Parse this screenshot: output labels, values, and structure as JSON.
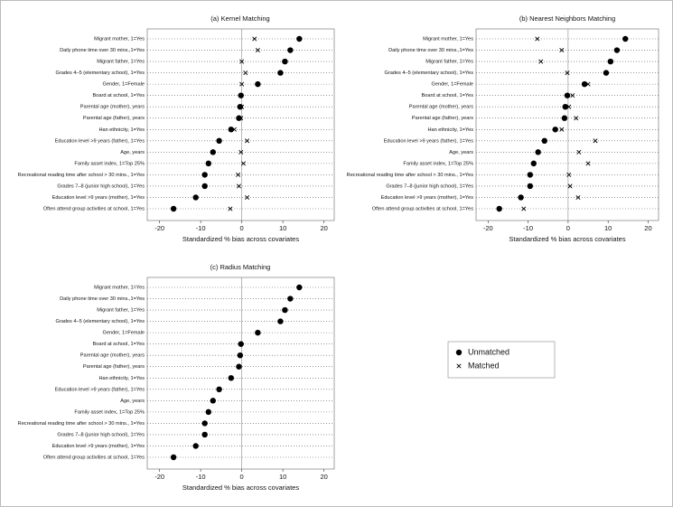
{
  "chart_data": [
    {
      "type": "dot",
      "title": "(a) Kernel Matching",
      "xlabel": "Standardized % bias across covariates",
      "categories": [
        "Migrant mother, 1=Yes",
        "Daily phone time over 30 mins.,1=Yes",
        "Migrant father, 1=Yes",
        "Grades 4–5 (elementary school), 1=Yes",
        "Gender, 1=Female",
        "Board at school, 1=Yes",
        "Parental age (mother), years",
        "Parental age (father), years",
        "Han ethnicity, 1=Yes",
        "Education level >9 years (father), 1=Yes",
        "Age, years",
        "Family asset index, 1=Top 25%",
        "Recreational reading time after school > 30 mins., 1=Yes",
        "Grades 7–8 (junior high school), 1=Yes",
        "Education level >9 years (mother), 1=Yes",
        "Often attend group activities at school, 1=Yes"
      ],
      "series": [
        {
          "name": "Unmatched",
          "marker": "circle",
          "color": "#000000",
          "values": [
            14.0,
            11.8,
            10.5,
            9.4,
            3.9,
            -0.2,
            -0.4,
            -0.7,
            -2.6,
            -5.5,
            -7.0,
            -8.1,
            -9.0,
            -9.0,
            -11.2,
            -16.6
          ]
        },
        {
          "name": "Matched",
          "marker": "x",
          "color": "#000000",
          "values": [
            3.1,
            3.9,
            0.0,
            0.9,
            0.0,
            -0.2,
            0.0,
            -0.2,
            -1.8,
            1.3,
            -0.2,
            0.4,
            -0.9,
            -0.7,
            1.3,
            -2.8
          ]
        }
      ],
      "xlim": [
        -23,
        22.5
      ],
      "xticks": [
        -20,
        -10,
        0,
        10,
        20
      ]
    },
    {
      "type": "dot",
      "title": "(b) Nearest Neighbors Matching",
      "xlabel": "Standardized % bias across covariates",
      "categories": [
        "Migrant mother, 1=Yes",
        "Daily phone time over 30 mins.,1=Yes",
        "Migrant father, 1=Yes",
        "Grades 4–5 (elementary school), 1=Yes",
        "Gender, 1=Female",
        "Board at school, 1=Yes",
        "Parental age (mother), years",
        "Parental age (father), years",
        "Han ethnicity, 1=Yes",
        "Education level >9 years (father), 1=Yes",
        "Age, years",
        "Family asset index, 1=Top 25%",
        "Recreational reading time after school > 30 mins., 1=Yes",
        "Grades 7–8 (junior high school), 1=Yes",
        "Education level >9 years (mother), 1=Yes",
        "Often attend group activities at school, 1=Yes"
      ],
      "series": [
        {
          "name": "Unmatched",
          "marker": "circle",
          "color": "#000000",
          "values": [
            14.3,
            12.2,
            10.6,
            9.5,
            4.1,
            -0.2,
            -0.7,
            -0.9,
            -3.2,
            -5.9,
            -7.5,
            -8.6,
            -9.5,
            -9.5,
            -11.8,
            -17.2
          ]
        },
        {
          "name": "Matched",
          "marker": "x",
          "color": "#000000",
          "values": [
            -7.7,
            -1.6,
            -6.8,
            -0.2,
            5.0,
            1.1,
            0.2,
            2.0,
            -1.6,
            6.8,
            2.7,
            5.0,
            0.2,
            0.5,
            2.5,
            -11.1
          ]
        }
      ],
      "xlim": [
        -23,
        22.6
      ],
      "xticks": [
        -20,
        -10,
        0,
        10,
        20
      ]
    },
    {
      "type": "dot",
      "title": "(c) Radius Matching",
      "xlabel": "Standardized % bias across covariates",
      "categories": [
        "Migrant mother, 1=Yes",
        "Daily phone time over 30 mins.,1=Yes",
        "Migrant father, 1=Yes",
        "Grades 4–5 (elementary school), 1=Yes",
        "Gender, 1=Female",
        "Board at school, 1=Yes",
        "Parental age (mother), years",
        "Parental age (father), years",
        "Han ethnicity, 1=Yes",
        "Education level >9 years (father), 1=Yes",
        "Age, years",
        "Family asset index, 1=Top 25%",
        "Recreational reading time after school > 30 mins., 1=Yes",
        "Grades 7–8 (junior high school), 1=Yes",
        "Education level >9 years (mother), 1=Yes",
        "Often attend group activities at school, 1=Yes"
      ],
      "series": [
        {
          "name": "Unmatched",
          "marker": "circle",
          "color": "#000000",
          "values": [
            14.0,
            11.8,
            10.5,
            9.4,
            3.9,
            -0.2,
            -0.4,
            -0.7,
            -2.6,
            -5.5,
            -7.0,
            -8.1,
            -9.0,
            -9.0,
            -11.2,
            -16.6
          ]
        }
      ],
      "xlim": [
        -23,
        22.5
      ],
      "xticks": [
        -20,
        -10,
        0,
        10,
        20
      ]
    }
  ]
}
